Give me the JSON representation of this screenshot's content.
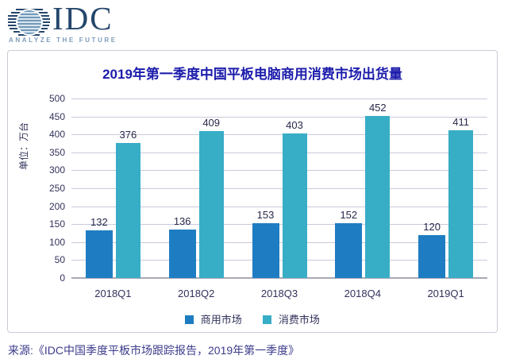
{
  "header": {
    "logo_text": "IDC",
    "tagline": "ANALYZE THE FUTURE"
  },
  "chart_data": {
    "type": "bar",
    "title": "2019年第一季度中国平板电脑商用消费市场出货量",
    "categories": [
      "2018Q1",
      "2018Q2",
      "2018Q3",
      "2018Q4",
      "2019Q1"
    ],
    "series": [
      {
        "name": "商用市场",
        "color": "#1e7dc2",
        "values": [
          132,
          136,
          153,
          152,
          120
        ]
      },
      {
        "name": "消费市场",
        "color": "#38adc6",
        "values": [
          376,
          409,
          403,
          452,
          411
        ]
      }
    ],
    "xlabel": "",
    "ylabel": "单位：万台",
    "ylim": [
      0,
      500
    ],
    "ytick_step": 50,
    "grid": true,
    "legend_position": "bottom"
  },
  "source": "来源:《IDC中国季度平板市场跟踪报告，2019年第一季度》",
  "colors": {
    "title": "#1c1cac",
    "commercial_bar": "#1e7dc2",
    "consumer_bar": "#38adc6",
    "axis_text": "#32325c",
    "gridline": "#c9c9dc",
    "panel_border": "#c9ccd6",
    "logo_navy": "#24466b",
    "logo_tagline": "#7d9cbb",
    "source_text": "#3c3c8c"
  }
}
